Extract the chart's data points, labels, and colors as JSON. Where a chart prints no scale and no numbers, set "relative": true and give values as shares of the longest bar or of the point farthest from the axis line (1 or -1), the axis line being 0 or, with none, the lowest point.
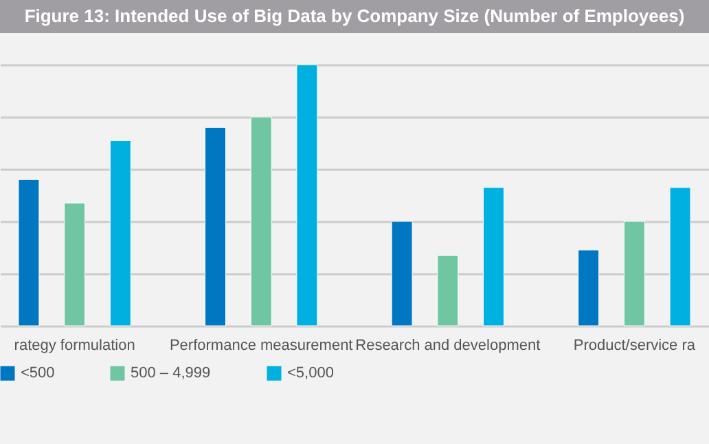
{
  "chart_data": {
    "type": "bar",
    "title": "Figure 13: Intended Use of Big Data by Company Size (Number of Employees)",
    "categories": [
      "rategy formulation",
      "Performance measurement",
      "Research and development",
      "Product/service ra"
    ],
    "relative": true,
    "grid": "y",
    "legend": "bottom",
    "series": [
      {
        "name": "<500",
        "color": "#0077c0",
        "values": [
          0.56,
          0.76,
          0.4,
          0.29
        ]
      },
      {
        "name": "500 – 4,999",
        "color": "#6fc6a0",
        "values": [
          0.47,
          0.8,
          0.27,
          0.4
        ]
      },
      {
        "name": "<5,000",
        "color": "#00b0e0",
        "values": [
          0.71,
          1,
          0.53,
          0.53
        ]
      }
    ]
  }
}
